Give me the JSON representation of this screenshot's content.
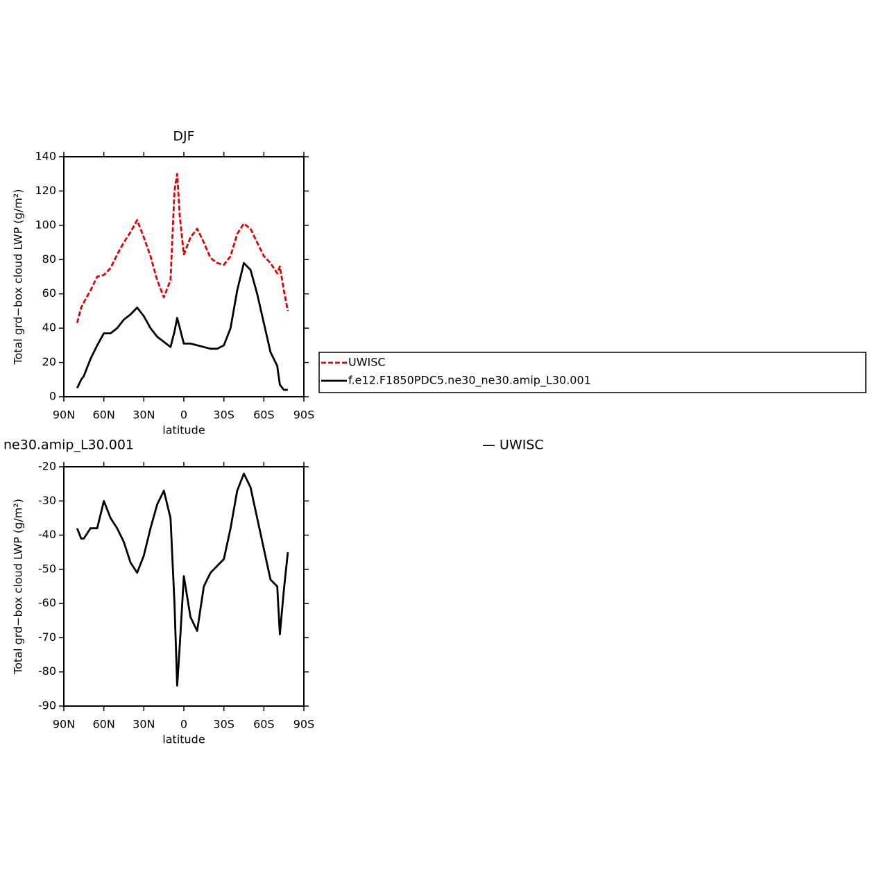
{
  "chart_data": [
    {
      "type": "line",
      "title": "DJF",
      "xlabel": "latitude",
      "ylabel": "Total grd−box cloud LWP (g/m²)",
      "x": [
        80,
        77,
        75,
        70,
        65,
        60,
        55,
        50,
        45,
        40,
        35,
        30,
        25,
        20,
        15,
        10,
        7,
        5,
        3,
        0,
        -5,
        -10,
        -15,
        -20,
        -25,
        -30,
        -35,
        -40,
        -45,
        -50,
        -55,
        -60,
        -65,
        -70,
        -72,
        -75,
        -78
      ],
      "series": [
        {
          "name": "UWISC",
          "color": "#e00000",
          "dash": true,
          "values": [
            43,
            52,
            55,
            62,
            70,
            71,
            75,
            83,
            90,
            96,
            103,
            93,
            82,
            68,
            58,
            68,
            120,
            130,
            105,
            83,
            93,
            98,
            90,
            81,
            78,
            77,
            82,
            95,
            101,
            98,
            90,
            82,
            78,
            72,
            76,
            62,
            50
          ]
        },
        {
          "name": "f.e12.F1850PDC5.ne30_ne30.amip_L30.001",
          "color": "#000000",
          "dash": false,
          "values": [
            5,
            10,
            12,
            22,
            30,
            37,
            37,
            40,
            45,
            48,
            52,
            47,
            40,
            35,
            32,
            29,
            38,
            46,
            40,
            31,
            31,
            30,
            29,
            28,
            28,
            30,
            40,
            62,
            78,
            74,
            60,
            43,
            26,
            18,
            7,
            4,
            4
          ]
        }
      ],
      "xlim": [
        90,
        -90
      ],
      "xticks": [
        {
          "value": 90,
          "label": "90N"
        },
        {
          "value": 60,
          "label": "60N"
        },
        {
          "value": 30,
          "label": "30N"
        },
        0,
        {
          "value": -30,
          "label": "30S"
        },
        {
          "value": -60,
          "label": "60S"
        },
        {
          "value": -90,
          "label": "90S"
        }
      ],
      "ylim": [
        0,
        140
      ],
      "yticks": [
        0,
        20,
        40,
        60,
        80,
        100,
        120,
        140
      ],
      "legend": true
    },
    {
      "type": "line",
      "title": "ne30.amip_L30.001",
      "subtitle": "— UWISC",
      "xlabel": "latitude",
      "ylabel": "Total grd−box cloud LWP (g/m²)",
      "x": [
        80,
        77,
        75,
        70,
        65,
        60,
        55,
        50,
        45,
        40,
        35,
        30,
        25,
        20,
        15,
        10,
        7,
        5,
        3,
        0,
        -5,
        -10,
        -15,
        -20,
        -25,
        -30,
        -35,
        -40,
        -45,
        -50,
        -55,
        -60,
        -65,
        -70,
        -72,
        -75,
        -78
      ],
      "series": [
        {
          "color": "#000000",
          "dash": false,
          "values": [
            -38,
            -41,
            -41,
            -38,
            -38,
            -30,
            -35,
            -38,
            -42,
            -48,
            -51,
            -46,
            -38,
            -31,
            -27,
            -35,
            -60,
            -84,
            -72,
            -52,
            -64,
            -68,
            -55,
            -51,
            -49,
            -47,
            -38,
            -27,
            -22,
            -26,
            -35,
            -44,
            -53,
            -55,
            -69,
            -56,
            -45
          ]
        }
      ],
      "xlim": [
        90,
        -90
      ],
      "xticks": [
        {
          "value": 90,
          "label": "90N"
        },
        {
          "value": 60,
          "label": "60N"
        },
        {
          "value": 30,
          "label": "30N"
        },
        0,
        {
          "value": -30,
          "label": "30S"
        },
        {
          "value": -60,
          "label": "60S"
        },
        {
          "value": -90,
          "label": "90S"
        }
      ],
      "ylim": [
        -90,
        -20
      ],
      "yticks": [
        -90,
        -80,
        -70,
        -60,
        -50,
        -40,
        -30,
        -20
      ],
      "legend": false
    }
  ]
}
